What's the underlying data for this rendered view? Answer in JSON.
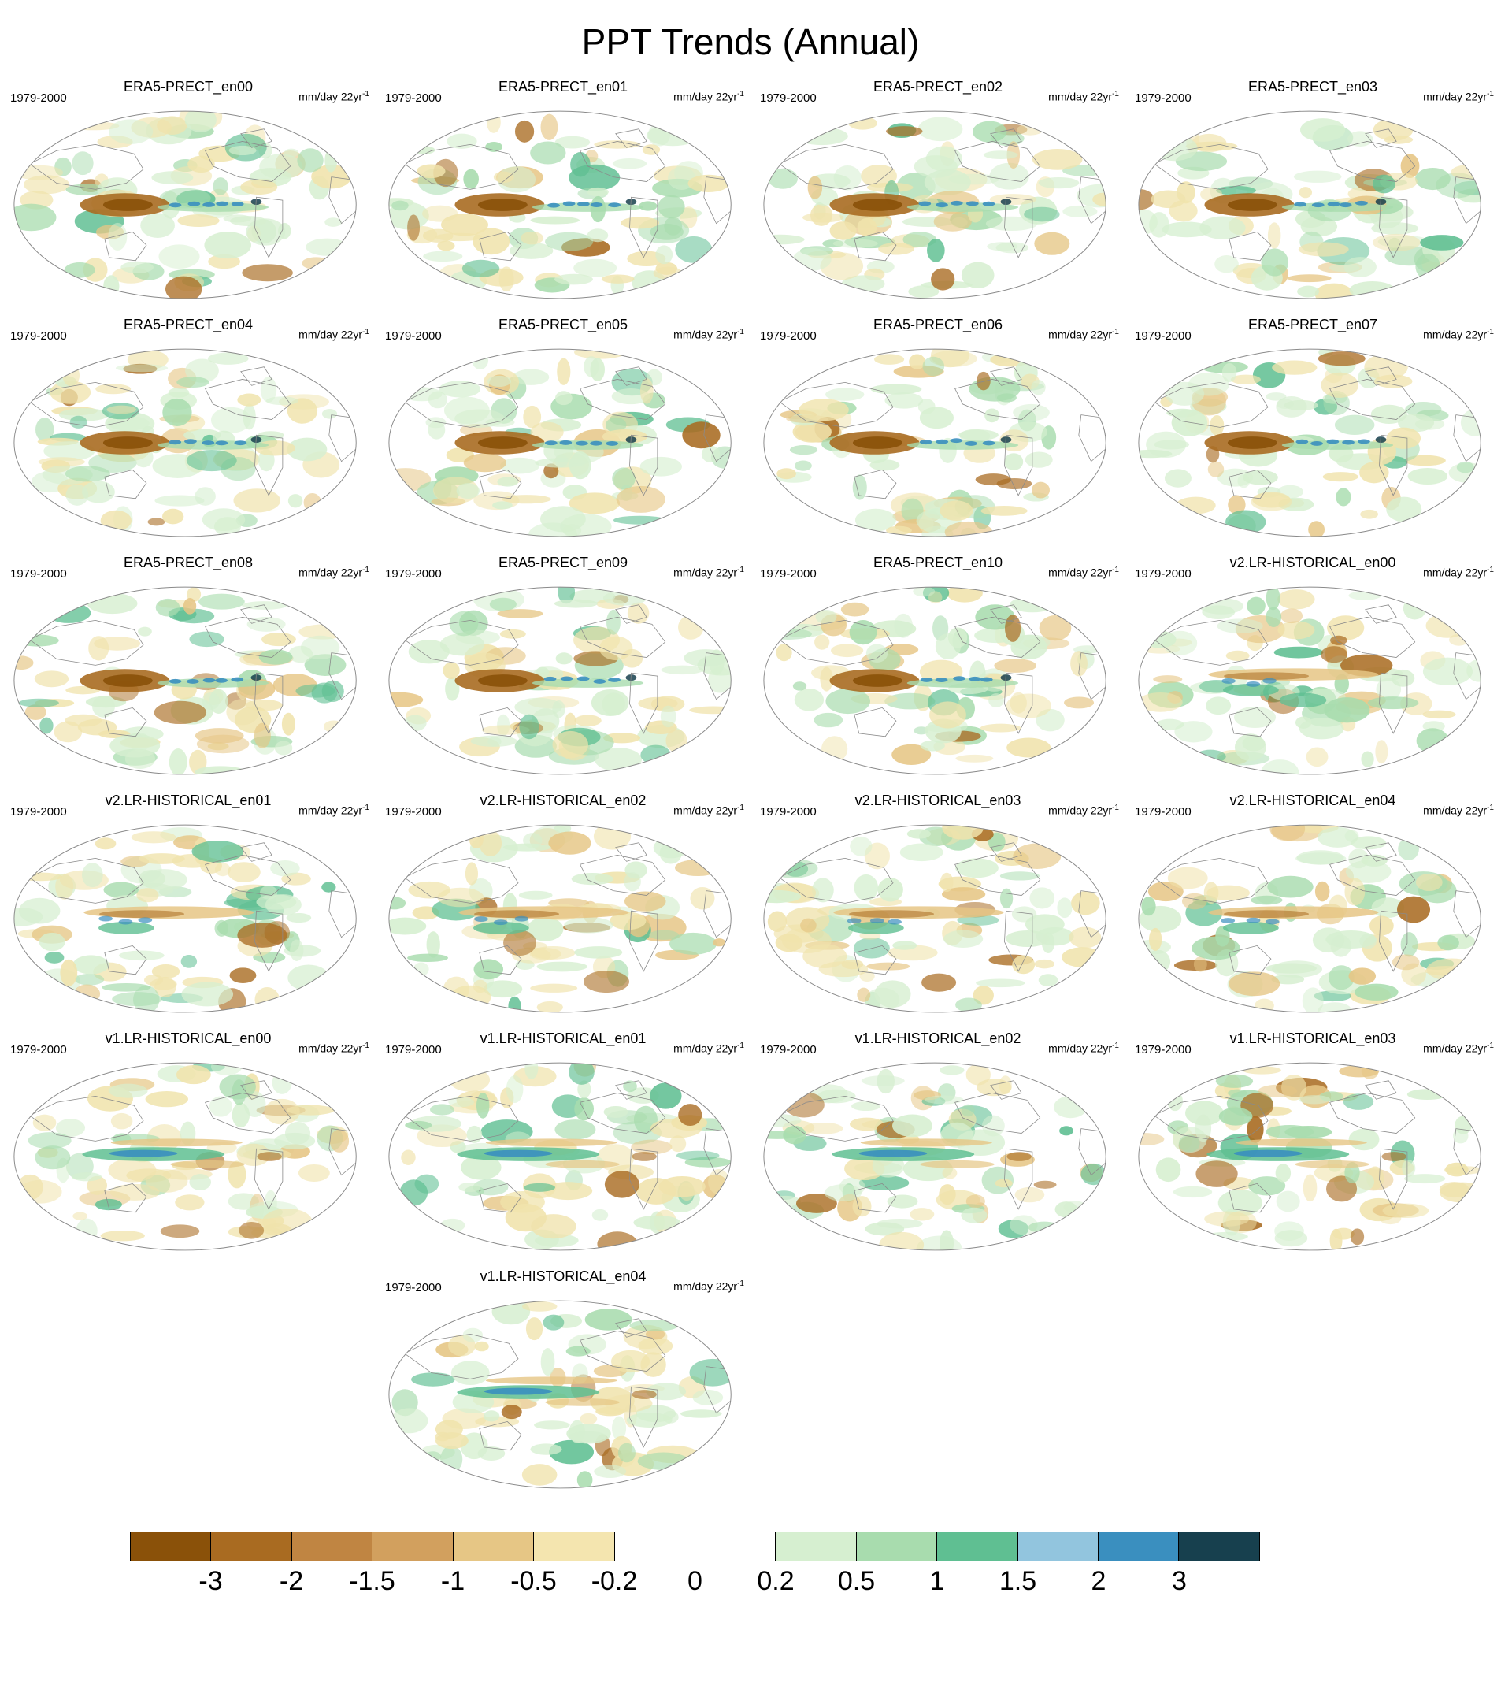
{
  "title": "PPT Trends (Annual)",
  "panel_defaults": {
    "period": "1979-2000",
    "units": "mm/day 22yr",
    "units_sup": "-1"
  },
  "panels": [
    {
      "name": "ERA5-PRECT_en00",
      "group": "era5"
    },
    {
      "name": "ERA5-PRECT_en01",
      "group": "era5"
    },
    {
      "name": "ERA5-PRECT_en02",
      "group": "era5"
    },
    {
      "name": "ERA5-PRECT_en03",
      "group": "era5"
    },
    {
      "name": "ERA5-PRECT_en04",
      "group": "era5"
    },
    {
      "name": "ERA5-PRECT_en05",
      "group": "era5"
    },
    {
      "name": "ERA5-PRECT_en06",
      "group": "era5"
    },
    {
      "name": "ERA5-PRECT_en07",
      "group": "era5"
    },
    {
      "name": "ERA5-PRECT_en08",
      "group": "era5"
    },
    {
      "name": "ERA5-PRECT_en09",
      "group": "era5"
    },
    {
      "name": "ERA5-PRECT_en10",
      "group": "era5"
    },
    {
      "name": "v2.LR-HISTORICAL_en00",
      "group": "v2"
    },
    {
      "name": "v2.LR-HISTORICAL_en01",
      "group": "v2"
    },
    {
      "name": "v2.LR-HISTORICAL_en02",
      "group": "v2"
    },
    {
      "name": "v2.LR-HISTORICAL_en03",
      "group": "v2"
    },
    {
      "name": "v2.LR-HISTORICAL_en04",
      "group": "v2"
    },
    {
      "name": "v1.LR-HISTORICAL_en00",
      "group": "v1"
    },
    {
      "name": "v1.LR-HISTORICAL_en01",
      "group": "v1"
    },
    {
      "name": "v1.LR-HISTORICAL_en02",
      "group": "v1"
    },
    {
      "name": "v1.LR-HISTORICAL_en03",
      "group": "v1"
    },
    {
      "name": "v1.LR-HISTORICAL_en04",
      "group": "v1"
    }
  ],
  "colorbar": {
    "ticks": [
      "-3",
      "-2",
      "-1.5",
      "-1",
      "-0.5",
      "-0.2",
      "0",
      "0.2",
      "0.5",
      "1",
      "1.5",
      "2",
      "3"
    ],
    "colors": [
      "#8a5109",
      "#a96b21",
      "#c08542",
      "#d2a05e",
      "#e6c685",
      "#f4e5af",
      "#ffffff",
      "#ffffff",
      "#d6efd0",
      "#a8dcae",
      "#5fbf92",
      "#92c5de",
      "#3a8fbf",
      "#17404e"
    ],
    "outline_color": "#000000"
  },
  "map_style": {
    "coast_color": "#8a8a8a",
    "pale_green": "#d6efd0",
    "pale_tan": "#f0e3ac",
    "mid_green": "#a8dcae",
    "tan": "#e6c685",
    "teal_green": "#5fbf92",
    "brown": "#a96b21",
    "dark_brown": "#8a5109",
    "blue": "#3a8fbf",
    "light_blue": "#92c5de",
    "dark_teal": "#17404e"
  }
}
